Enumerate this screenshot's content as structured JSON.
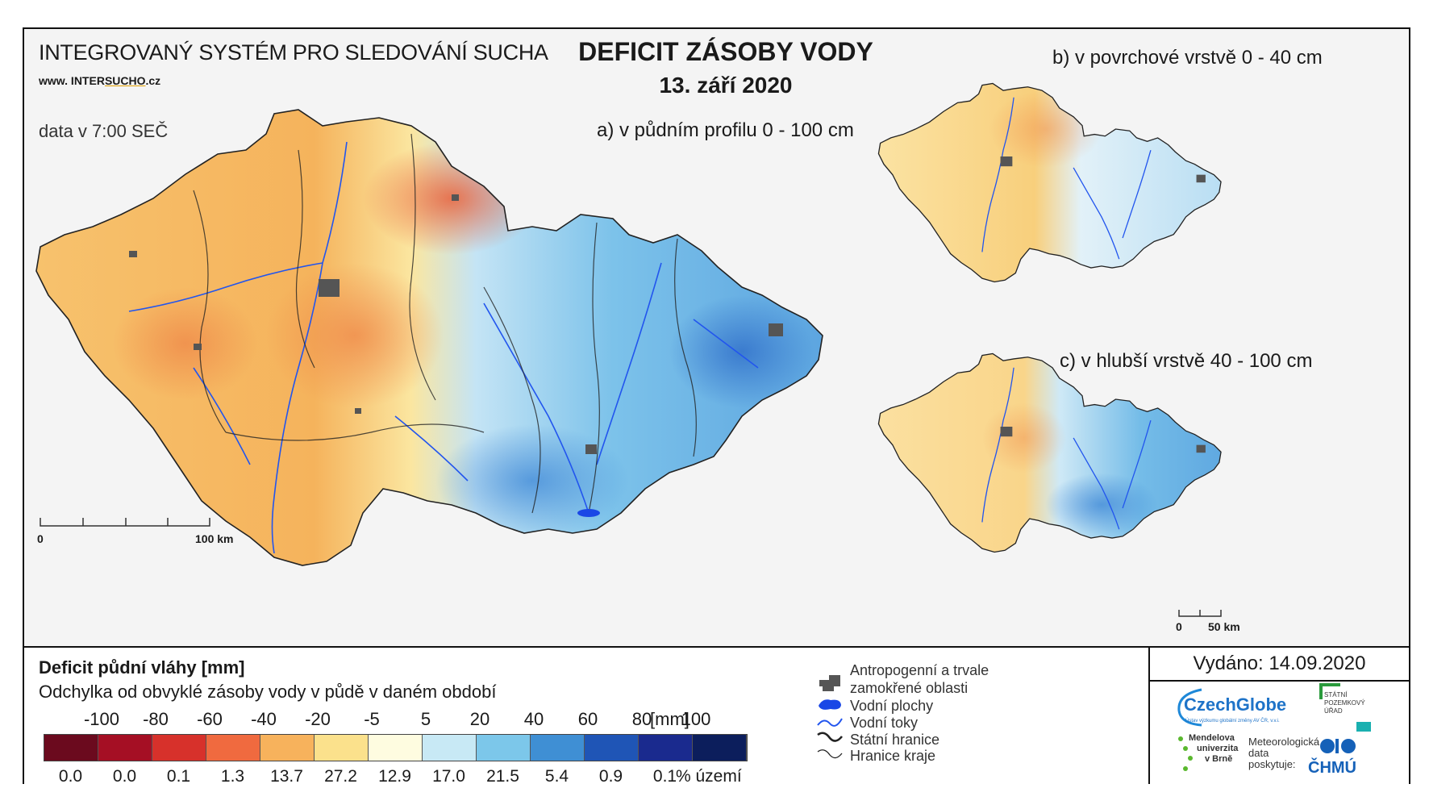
{
  "header": {
    "system_title": "INTEGROVANÝ SYSTÉM PRO SLEDOVÁNÍ SUCHA",
    "website_prefix": "www. INTER",
    "website_highlight": "SUCHO",
    "website_suffix": ".cz",
    "data_time": "data v 7:00 SEČ",
    "main_title": "DEFICIT ZÁSOBY VODY",
    "date": "13. září 2020"
  },
  "panels": {
    "a": "a) v půdním profilu 0 - 100 cm",
    "b": "b) v povrchové vrstvě 0 - 40 cm",
    "c": "c) v hlubší vrstvě 40 - 100 cm"
  },
  "scale_bars": {
    "main": {
      "start": "0",
      "end": "100 km"
    },
    "small": {
      "start": "0",
      "end": "50 km"
    }
  },
  "legend": {
    "title": "Deficit půdní vláhy  [mm]",
    "subtitle": "Odchylka od obvyklé zásoby vody v půdě v daném období",
    "ticks": [
      "-100",
      "-80",
      "-60",
      "-40",
      "-20",
      "-5",
      "5",
      "20",
      "40",
      "60",
      "80",
      "100"
    ],
    "unit": "[mm]",
    "colors": [
      "#6b0a1e",
      "#a50f24",
      "#d7312b",
      "#f06a3f",
      "#f7b25c",
      "#fbe18c",
      "#fefce0",
      "#c8e9f5",
      "#7cc7ea",
      "#3f8fd4",
      "#1f55b6",
      "#1a2a8e",
      "#0c1e5c"
    ],
    "percentages": [
      "0.0",
      "0.0",
      "0.1",
      "1.3",
      "13.7",
      "27.2",
      "12.9",
      "17.0",
      "21.5",
      "5.4",
      "0.9",
      "0.1"
    ],
    "percent_unit": "% území"
  },
  "map_key": {
    "anthropogenic_1": "Antropogenní a trvale",
    "anthropogenic_2": "zamokřené oblasti",
    "water_bodies": "Vodní plochy",
    "rivers": "Vodní toky",
    "state_border": "Státní hranice",
    "region_border": "Hranice kraje"
  },
  "issued": "Vydáno: 14.09.2020",
  "logos": {
    "czechglobe": "CzechGlobe",
    "czechglobe_sub": "Ústav výzkumu globální změny AV ČR, v.v.i.",
    "spu_1": "STÁTNÍ",
    "spu_2": "POZEMKOVÝ",
    "spu_3": "ÚŘAD",
    "mendel_1": "Mendelova",
    "mendel_2": "univerzita",
    "mendel_3": "v Brně",
    "met_1": "Meteorologická",
    "met_2": "data",
    "met_3": "poskytuje:",
    "chmu": "ČHMÚ"
  }
}
